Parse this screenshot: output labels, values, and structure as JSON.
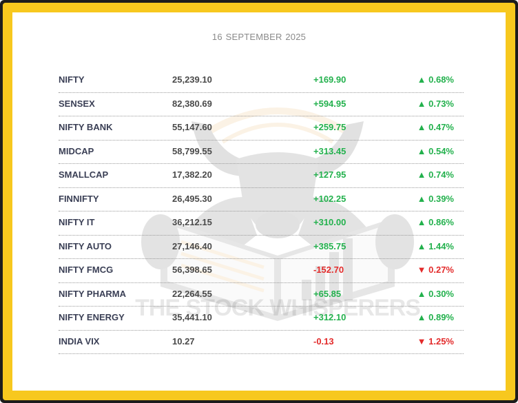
{
  "date": "16 SEPTEMBER  2025",
  "watermark_brand": "THE STOCK WHISPERERS",
  "colors": {
    "positive": "#23b14d",
    "negative": "#e32b2b",
    "frame": "#f7c81e"
  },
  "rows": [
    {
      "name": "NIFTY",
      "value": "25,239.10",
      "change": "+169.90",
      "pct": "▲ 0.68%",
      "dir": "up"
    },
    {
      "name": "SENSEX",
      "value": "82,380.69",
      "change": "+594.95",
      "pct": "▲ 0.73%",
      "dir": "up"
    },
    {
      "name": "NIFTY BANK",
      "value": "55,147.60",
      "change": "+259.75",
      "pct": "▲ 0.47%",
      "dir": "up"
    },
    {
      "name": "MIDCAP",
      "value": "58,799.55",
      "change": "+313.45",
      "pct": "▲ 0.54%",
      "dir": "up"
    },
    {
      "name": "SMALLCAP",
      "value": "17,382.20",
      "change": "+127.95",
      "pct": "▲ 0.74%",
      "dir": "up"
    },
    {
      "name": "FINNIFTY",
      "value": "26,495.30",
      "change": "+102.25",
      "pct": "▲ 0.39%",
      "dir": "up"
    },
    {
      "name": "NIFTY IT",
      "value": "36,212.15",
      "change": "+310.00",
      "pct": "▲ 0.86%",
      "dir": "up"
    },
    {
      "name": "NIFTY AUTO",
      "value": "27,146.40",
      "change": "+385.75",
      "pct": "▲ 1.44%",
      "dir": "up"
    },
    {
      "name": "NIFTY FMCG",
      "value": "56,398.65",
      "change": "-152.70",
      "pct": "▼ 0.27%",
      "dir": "down"
    },
    {
      "name": "NIFTY PHARMA",
      "value": "22,264.55",
      "change": "+65.85",
      "pct": "▲ 0.30%",
      "dir": "up"
    },
    {
      "name": "NIFTY ENERGY",
      "value": "35,441.10",
      "change": "+312.10",
      "pct": "▲ 0.89%",
      "dir": "up"
    },
    {
      "name": "INDIA VIX",
      "value": "10.27",
      "change": "-0.13",
      "pct": "▼ 1.25%",
      "dir": "down"
    }
  ]
}
